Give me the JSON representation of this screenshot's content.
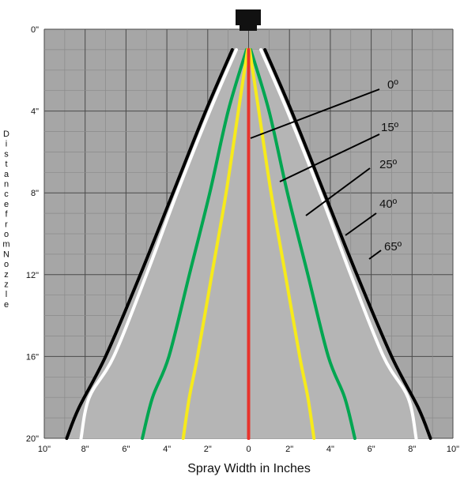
{
  "chart_data": {
    "type": "line",
    "xlabel": "Spray Width in Inches",
    "ylabel": "Distance from Nozzle",
    "xlim": [
      -10,
      10
    ],
    "ylim": [
      0,
      20
    ],
    "y_inverted": true,
    "grid": true,
    "x_ticks": [
      "10\"",
      "8\"",
      "6\"",
      "4\"",
      "2\"",
      "0",
      "2\"",
      "4\"",
      "6\"",
      "8\"",
      "10\""
    ],
    "y_ticks": [
      "0\"",
      "4\"",
      "8\"",
      "12\"",
      "16\"",
      "20\""
    ],
    "series": [
      {
        "name": "0º",
        "color": "#e8322b",
        "points": [
          [
            0,
            1
          ],
          [
            0,
            20
          ]
        ]
      },
      {
        "name": "15º",
        "color": "#f6ea1c",
        "points": [
          [
            0.05,
            1
          ],
          [
            0.5,
            4
          ],
          [
            1.1,
            8
          ],
          [
            1.8,
            12
          ],
          [
            2.5,
            16
          ],
          [
            2.9,
            18
          ],
          [
            3.2,
            20
          ]
        ]
      },
      {
        "name": "25º",
        "color": "#00a651",
        "points": [
          [
            0.1,
            1
          ],
          [
            1.0,
            4
          ],
          [
            1.9,
            8
          ],
          [
            2.9,
            12
          ],
          [
            3.9,
            16
          ],
          [
            4.7,
            18
          ],
          [
            5.2,
            20
          ]
        ]
      },
      {
        "name": "40º",
        "color": "#ffffff",
        "points": [
          [
            0.6,
            1
          ],
          [
            1.9,
            4
          ],
          [
            3.5,
            8
          ],
          [
            5.0,
            12
          ],
          [
            6.6,
            16
          ],
          [
            7.8,
            18
          ],
          [
            8.2,
            20
          ]
        ]
      },
      {
        "name": "65º",
        "color": "#000000",
        "points": [
          [
            0.8,
            1
          ],
          [
            2.1,
            4
          ],
          [
            3.7,
            8
          ],
          [
            5.3,
            12
          ],
          [
            7.0,
            16
          ],
          [
            8.3,
            18.5
          ],
          [
            8.9,
            20
          ]
        ]
      }
    ]
  },
  "legend_labels": [
    "0º",
    "15º",
    "25º",
    "40º",
    "65º"
  ],
  "colors": {
    "plot_bg": "#a6a6a6",
    "spray_fill": "#b5b5b5",
    "grid_major": "#4a4a4a",
    "grid_minor": "#8a8a8a",
    "nozzle": "#111111"
  },
  "icon": "nozzle-icon"
}
